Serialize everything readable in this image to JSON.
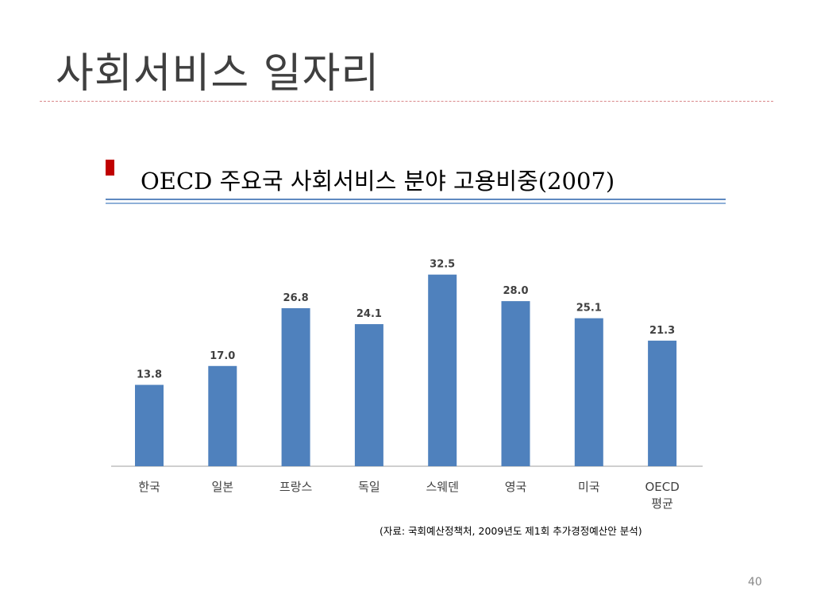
{
  "slide": {
    "title": "사회서비스 일자리",
    "subtitle": "OECD 주요국 사회서비스 분야 고용비중(2007)",
    "source": "(자료: 국회예산정책처, 2009년도 제1회 추가경정예산안 분석)",
    "page_number": "40"
  },
  "colors": {
    "bar": "#4f81bd",
    "bullet": "#c00000",
    "title_rule": "#d9888a"
  },
  "chart_data": {
    "type": "bar",
    "categories": [
      "한국",
      "일본",
      "프랑스",
      "독일",
      "스웨덴",
      "영국",
      "미국",
      "OECD 평균"
    ],
    "category_lines": [
      [
        "한국"
      ],
      [
        "일본"
      ],
      [
        "프랑스"
      ],
      [
        "독일"
      ],
      [
        "스웨덴"
      ],
      [
        "영국"
      ],
      [
        "미국"
      ],
      [
        "OECD",
        "평균"
      ]
    ],
    "values": [
      13.8,
      17.0,
      26.8,
      24.1,
      32.5,
      28.0,
      25.1,
      21.3
    ],
    "value_labels": [
      "13.8",
      "17.0",
      "26.8",
      "24.1",
      "32.5",
      "28.0",
      "25.1",
      "21.3"
    ],
    "ylim": [
      0,
      33
    ],
    "grid": false,
    "legend": "none"
  }
}
